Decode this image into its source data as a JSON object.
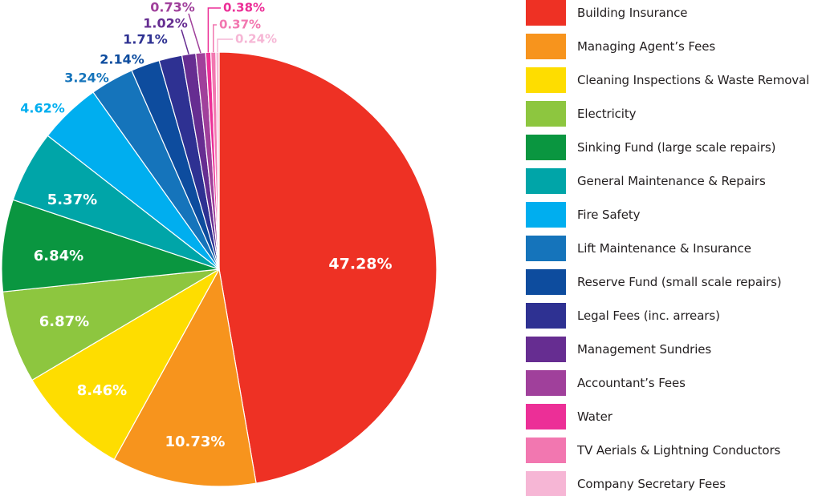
{
  "chart_data": {
    "type": "pie",
    "title": "",
    "start": "12 o'clock, clockwise",
    "slices": [
      {
        "label": "Building Insurance",
        "value": 47.28,
        "display": "47.28%",
        "color": "#ee3124"
      },
      {
        "label": "Managing Agent’s Fees",
        "value": 10.73,
        "display": "10.73%",
        "color": "#f7941d"
      },
      {
        "label": "Cleaning Inspections & Waste Removal",
        "value": 8.46,
        "display": "8.46%",
        "color": "#fedd00"
      },
      {
        "label": "Electricity",
        "value": 6.87,
        "display": "6.87%",
        "color": "#8dc63f"
      },
      {
        "label": "Sinking Fund (large scale repairs)",
        "value": 6.84,
        "display": "6.84%",
        "color": "#0a9640"
      },
      {
        "label": "General Maintenance & Repairs",
        "value": 5.37,
        "display": "5.37%",
        "color": "#00a5a8"
      },
      {
        "label": "Fire Safety",
        "value": 4.62,
        "display": "4.62%",
        "color": "#00aeef"
      },
      {
        "label": "Lift Maintenance & Insurance",
        "value": 3.24,
        "display": "3.24%",
        "color": "#1574bb"
      },
      {
        "label": "Reserve Fund (small scale repairs)",
        "value": 2.14,
        "display": "2.14%",
        "color": "#0d4c9e"
      },
      {
        "label": "Legal Fees (inc. arrears)",
        "value": 1.71,
        "display": "1.71%",
        "color": "#2e3192"
      },
      {
        "label": "Management Sundries",
        "value": 1.02,
        "display": "1.02%",
        "color": "#662d91"
      },
      {
        "label": "Accountant’s Fees",
        "value": 0.73,
        "display": "0.73%",
        "color": "#a0409b"
      },
      {
        "label": "Water",
        "value": 0.38,
        "display": "0.38%",
        "color": "#ec2f97"
      },
      {
        "label": "TV Aerials & Lightning Conductors",
        "value": 0.37,
        "display": "0.37%",
        "color": "#f277b0"
      },
      {
        "label": "Company Secretary Fees",
        "value": 0.24,
        "display": "0.24%",
        "color": "#f6b6d5"
      }
    ],
    "legend_position": "right",
    "inside_label_color": "#ffffff"
  }
}
